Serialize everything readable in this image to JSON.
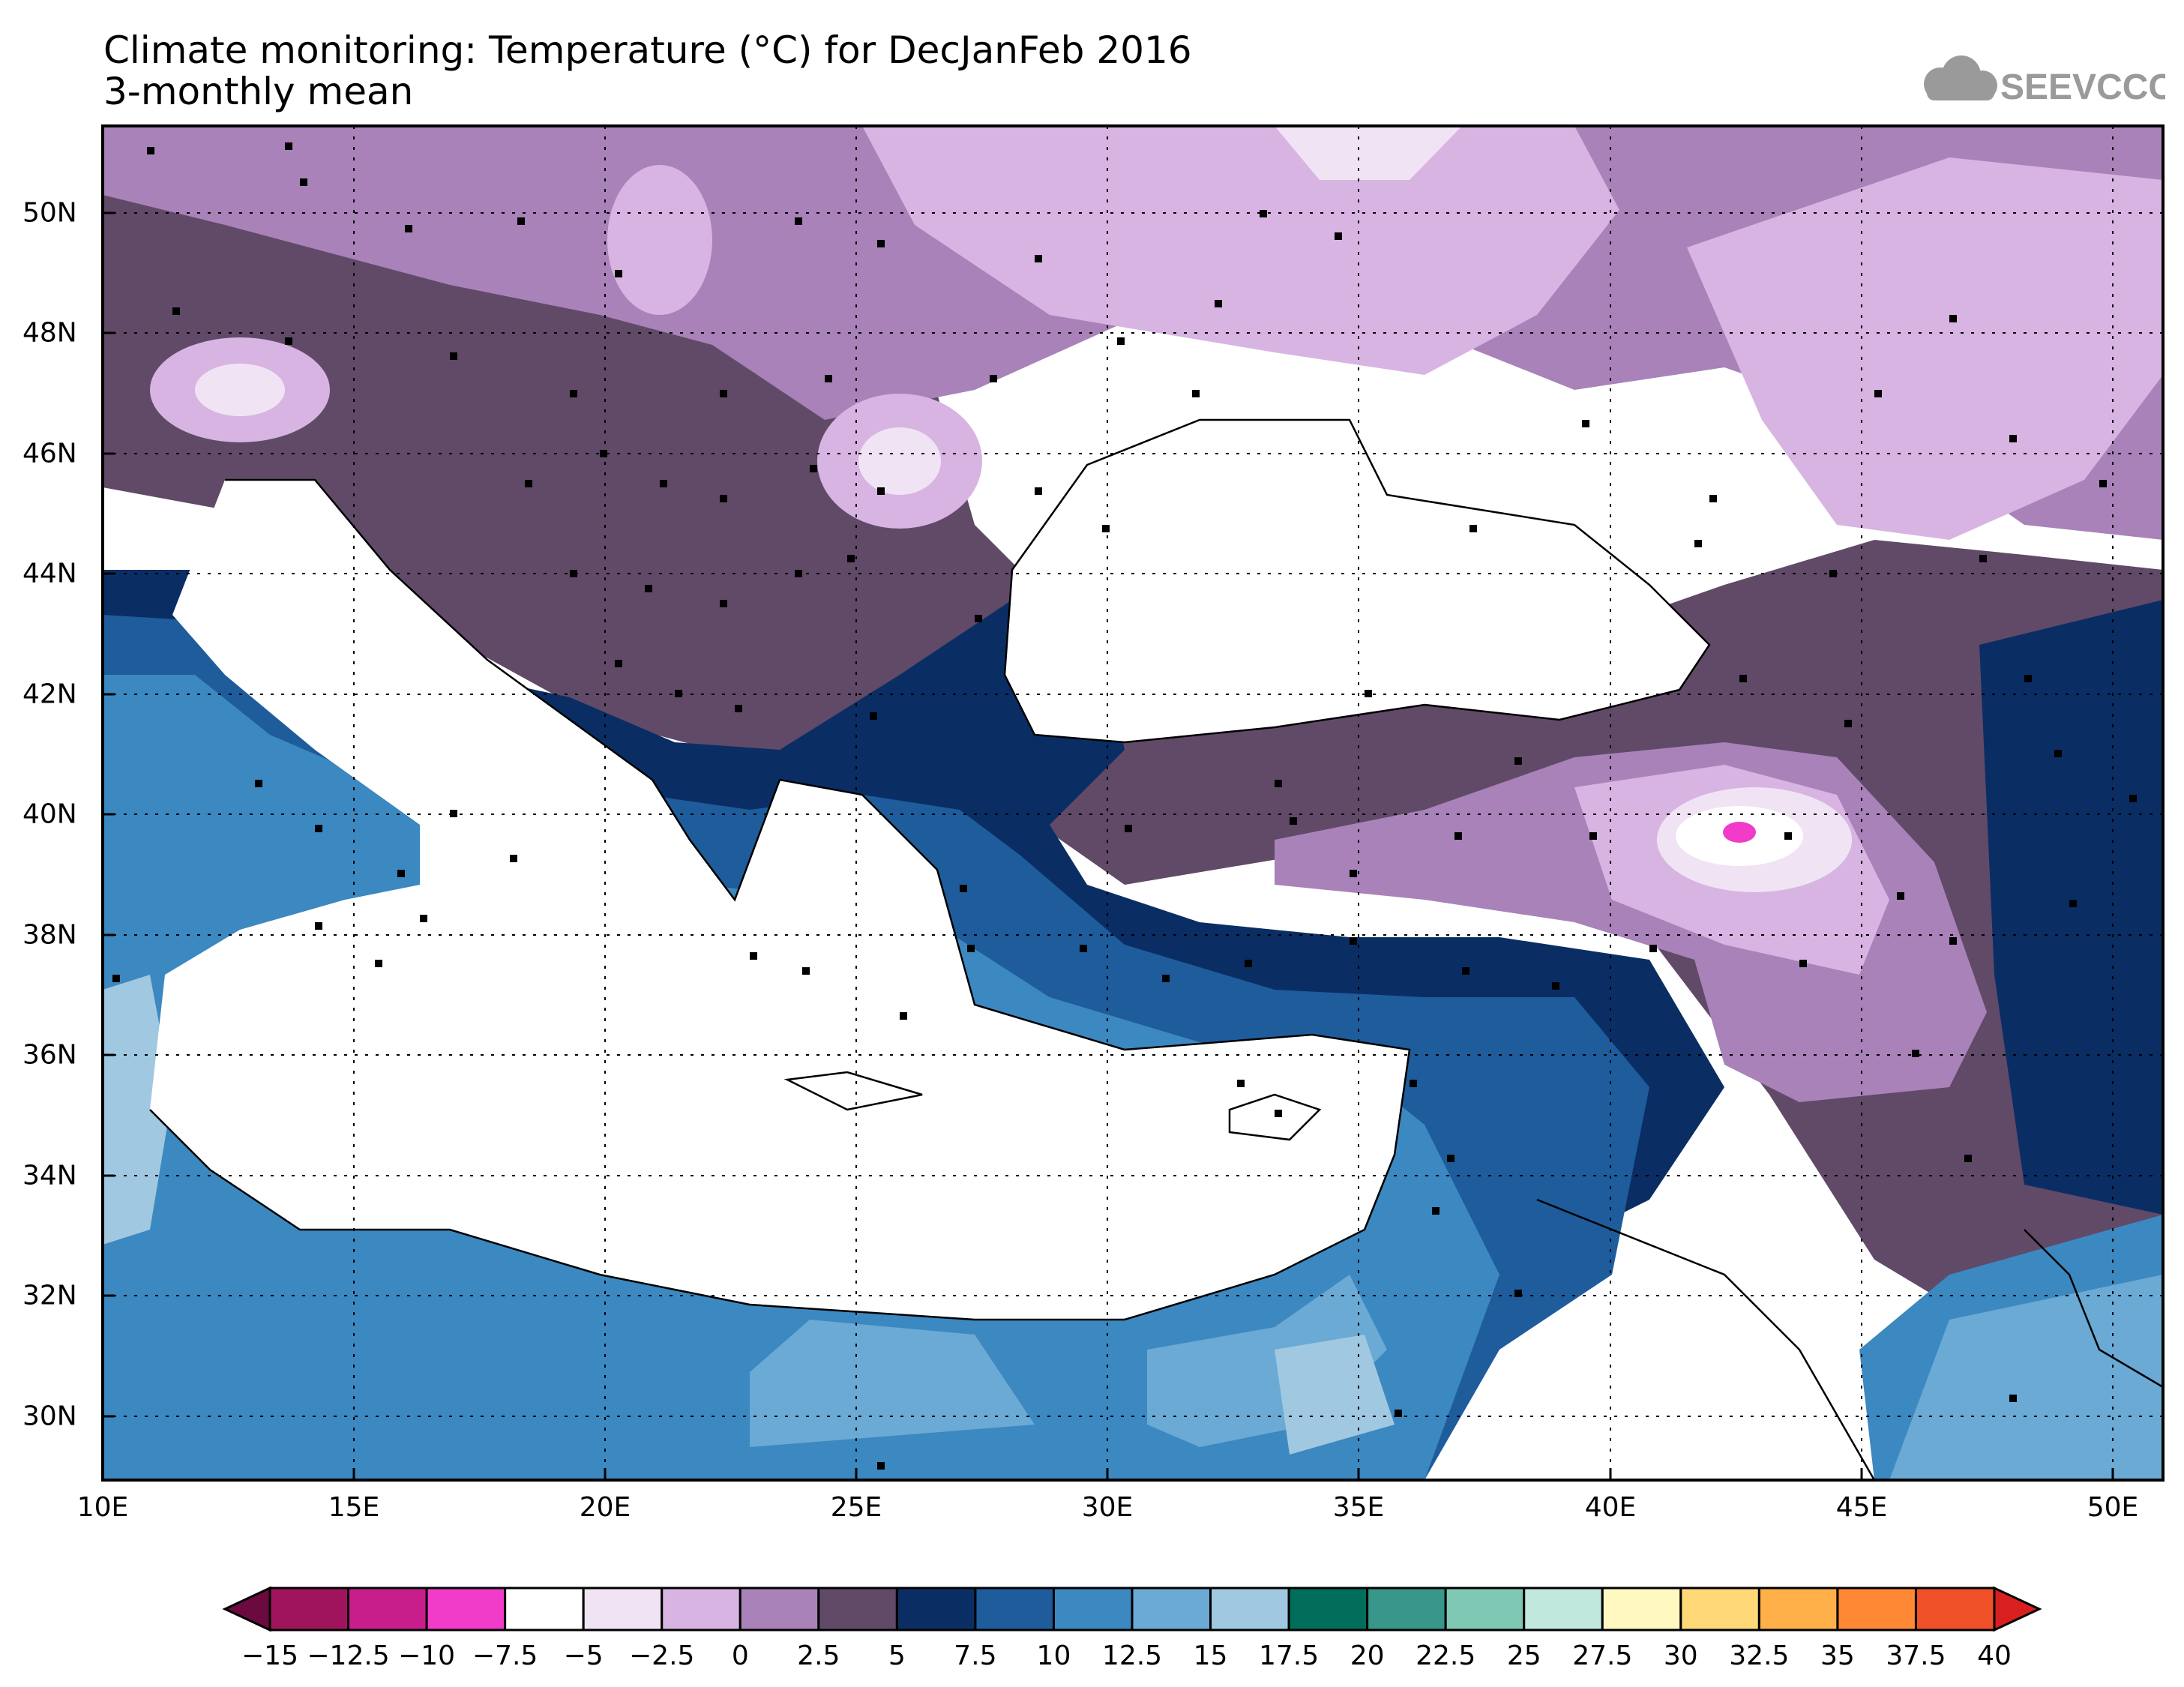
{
  "title_line1": "Climate monitoring: Temperature (°C) for DecJanFeb 2016",
  "title_line2": "3-monthly mean",
  "logo_text": "SEEVCCC",
  "map": {
    "x_ticks": [
      "10E",
      "15E",
      "20E",
      "25E",
      "30E",
      "35E",
      "40E",
      "45E",
      "50E"
    ],
    "y_ticks": [
      "50N",
      "48N",
      "46N",
      "44N",
      "42N",
      "40N",
      "38N",
      "36N",
      "34N",
      "32N",
      "30N"
    ],
    "lon_range": [
      10,
      51
    ],
    "lat_range": [
      29,
      51.5
    ]
  },
  "colorbar": {
    "labels": [
      "-15",
      "-12.5",
      "-10",
      "-7.5",
      "-5",
      "-2.5",
      "0",
      "2.5",
      "5",
      "7.5",
      "10",
      "12.5",
      "15",
      "17.5",
      "20",
      "22.5",
      "25",
      "27.5",
      "30",
      "32.5",
      "35",
      "37.5",
      "40"
    ],
    "colors": [
      "#6b0a3e",
      "#a0145e",
      "#c81e8c",
      "#f03cc8",
      "#ffffff",
      "#f0e4f4",
      "#d8b4e2",
      "#a882b8",
      "#604a68",
      "#0a2e64",
      "#1e5c9c",
      "#3c88c0",
      "#6aaad4",
      "#a0c8e0",
      "#006e5a",
      "#38968a",
      "#7ec8b4",
      "#c0e8dc",
      "#fff8c0",
      "#ffd878",
      "#ffb048",
      "#ff8834",
      "#f05028",
      "#d82020"
    ]
  }
}
